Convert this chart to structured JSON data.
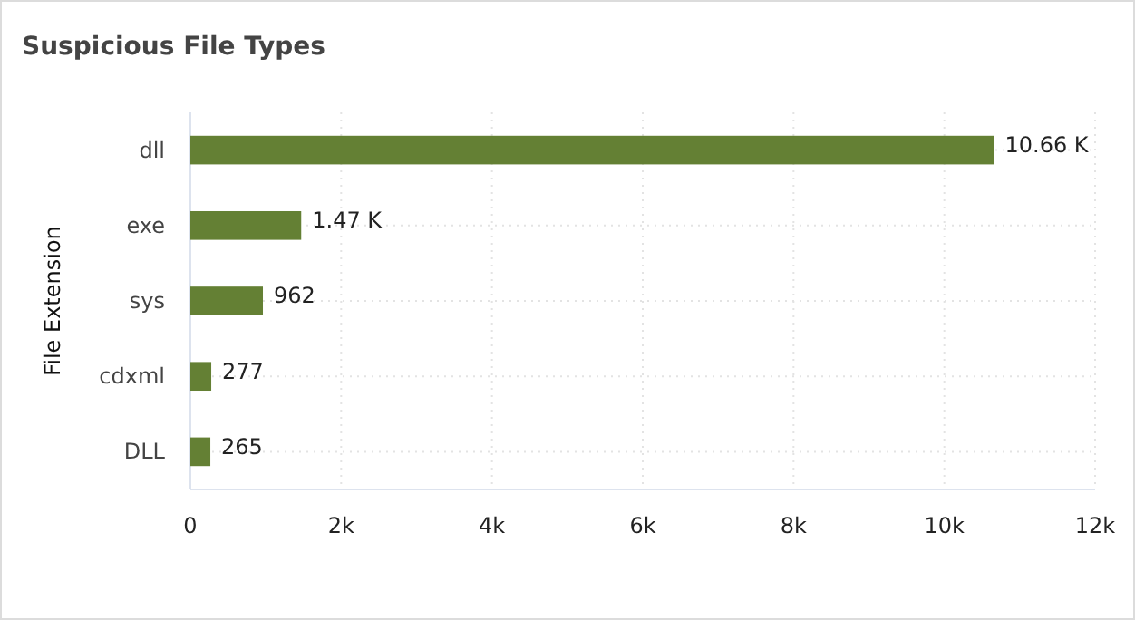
{
  "chart_data": {
    "type": "bar",
    "orientation": "horizontal",
    "title": "Suspicious File Types",
    "ylabel": "File Extension",
    "categories": [
      "dll",
      "exe",
      "sys",
      "cdxml",
      "DLL"
    ],
    "values": [
      10660,
      1470,
      962,
      277,
      265
    ],
    "value_labels": [
      "10.66 K",
      "1.47 K",
      "962",
      "277",
      "265"
    ],
    "color": "#648034",
    "xlim": [
      0,
      12000
    ],
    "xticks": [
      {
        "value": 0,
        "label": "0"
      },
      {
        "value": 2000,
        "label": "2k"
      },
      {
        "value": 4000,
        "label": "4k"
      },
      {
        "value": 6000,
        "label": "6k"
      },
      {
        "value": 8000,
        "label": "8k"
      },
      {
        "value": 10000,
        "label": "10k"
      },
      {
        "value": 12000,
        "label": "12k"
      }
    ],
    "grid": true
  }
}
